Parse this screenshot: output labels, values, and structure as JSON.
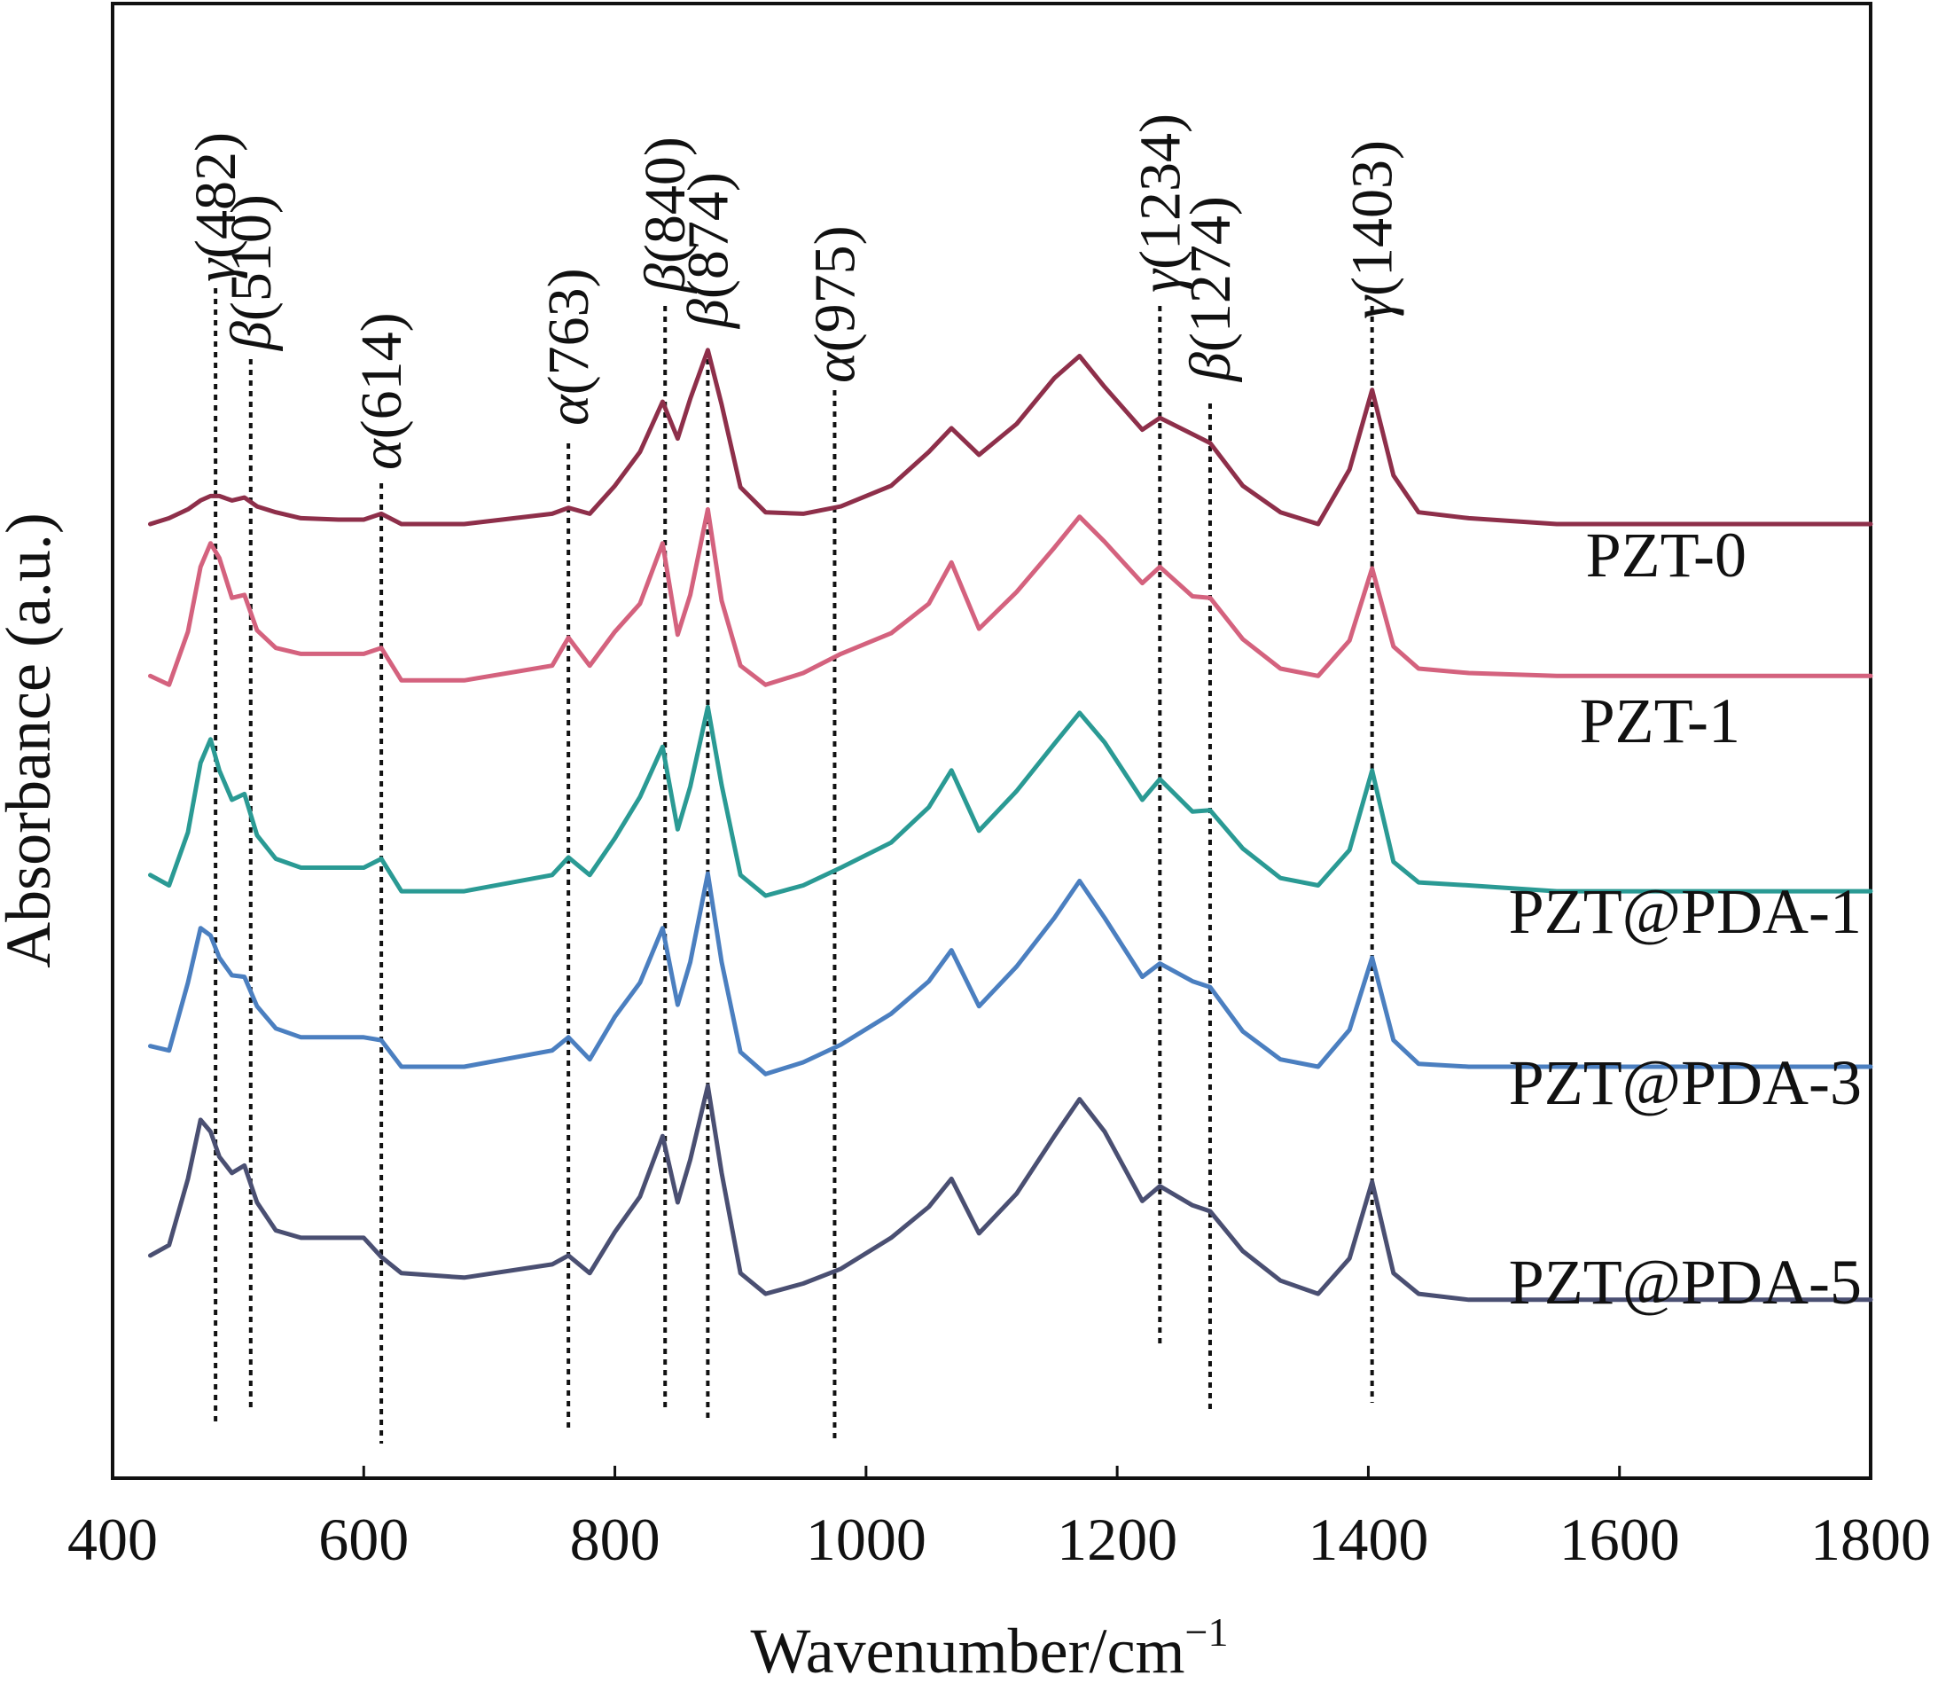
{
  "chart_data": {
    "type": "line",
    "title": "",
    "xlabel": "Wavenumber/cm",
    "xlabel_sup": "−1",
    "ylabel": "Absorbance (a.u.)",
    "xlim": [
      400,
      1800
    ],
    "ylim": [
      0,
      1
    ],
    "x_ticks": [
      400,
      600,
      800,
      1000,
      1200,
      1400,
      1600,
      1800
    ],
    "y_ticks_shown": false,
    "grid": false,
    "peaks": [
      {
        "symbol": "γ",
        "text": "(482)",
        "x": 482
      },
      {
        "symbol": "β",
        "text": "(510)",
        "x": 510
      },
      {
        "symbol": "α",
        "text": "(614)",
        "x": 614
      },
      {
        "symbol": "α",
        "text": "(763)",
        "x": 763
      },
      {
        "symbol": "β",
        "text": "(840)",
        "x": 840
      },
      {
        "symbol": "β",
        "text": "(874)",
        "x": 874
      },
      {
        "symbol": "α",
        "text": "(975)",
        "x": 975
      },
      {
        "symbol": "γ",
        "text": "(1234)",
        "x": 1234
      },
      {
        "symbol": "β",
        "text": "(1274)",
        "x": 1274
      },
      {
        "symbol": "γ",
        "text": "(1403)",
        "x": 1403
      }
    ],
    "x": [
      430,
      445,
      460,
      470,
      478,
      485,
      495,
      505,
      515,
      530,
      550,
      580,
      600,
      614,
      630,
      680,
      750,
      763,
      780,
      800,
      820,
      838,
      850,
      860,
      874,
      885,
      900,
      920,
      950,
      980,
      1020,
      1050,
      1068,
      1090,
      1120,
      1150,
      1170,
      1190,
      1220,
      1234,
      1260,
      1274,
      1300,
      1330,
      1360,
      1385,
      1403,
      1420,
      1440,
      1480,
      1550,
      1650,
      1800
    ],
    "series": [
      {
        "name": "PZT-0",
        "color": "#8e2f4a",
        "values": [
          0.647,
          0.651,
          0.657,
          0.663,
          0.666,
          0.666,
          0.663,
          0.665,
          0.659,
          0.655,
          0.651,
          0.65,
          0.65,
          0.654,
          0.647,
          0.647,
          0.654,
          0.658,
          0.654,
          0.673,
          0.696,
          0.73,
          0.705,
          0.732,
          0.765,
          0.728,
          0.672,
          0.655,
          0.654,
          0.659,
          0.673,
          0.696,
          0.712,
          0.694,
          0.715,
          0.746,
          0.761,
          0.74,
          0.711,
          0.719,
          0.708,
          0.702,
          0.673,
          0.655,
          0.647,
          0.684,
          0.738,
          0.68,
          0.655,
          0.651,
          0.647,
          0.647,
          0.647
        ]
      },
      {
        "name": "PZT-1",
        "color": "#d4627e",
        "values": [
          0.544,
          0.538,
          0.574,
          0.618,
          0.634,
          0.624,
          0.597,
          0.599,
          0.575,
          0.563,
          0.559,
          0.559,
          0.559,
          0.563,
          0.541,
          0.541,
          0.551,
          0.57,
          0.551,
          0.574,
          0.593,
          0.634,
          0.572,
          0.599,
          0.657,
          0.595,
          0.551,
          0.538,
          0.546,
          0.559,
          0.573,
          0.593,
          0.621,
          0.576,
          0.601,
          0.631,
          0.652,
          0.635,
          0.607,
          0.618,
          0.598,
          0.597,
          0.569,
          0.549,
          0.544,
          0.568,
          0.617,
          0.564,
          0.549,
          0.546,
          0.544,
          0.544,
          0.544
        ]
      },
      {
        "name": "PZT@PDA-1",
        "color": "#2a9a94",
        "values": [
          0.409,
          0.402,
          0.438,
          0.485,
          0.501,
          0.48,
          0.46,
          0.464,
          0.436,
          0.42,
          0.414,
          0.414,
          0.414,
          0.42,
          0.398,
          0.398,
          0.409,
          0.421,
          0.409,
          0.434,
          0.462,
          0.496,
          0.44,
          0.469,
          0.523,
          0.47,
          0.409,
          0.395,
          0.402,
          0.414,
          0.431,
          0.455,
          0.48,
          0.439,
          0.466,
          0.498,
          0.519,
          0.499,
          0.46,
          0.474,
          0.452,
          0.453,
          0.427,
          0.407,
          0.402,
          0.426,
          0.48,
          0.418,
          0.404,
          0.402,
          0.398,
          0.398,
          0.398
        ]
      },
      {
        "name": "PZT@PDA-3",
        "color": "#4b7fc0",
        "values": [
          0.293,
          0.29,
          0.336,
          0.373,
          0.368,
          0.353,
          0.341,
          0.34,
          0.32,
          0.305,
          0.299,
          0.299,
          0.299,
          0.297,
          0.279,
          0.279,
          0.29,
          0.299,
          0.284,
          0.313,
          0.336,
          0.373,
          0.321,
          0.35,
          0.41,
          0.35,
          0.289,
          0.274,
          0.282,
          0.294,
          0.315,
          0.337,
          0.358,
          0.32,
          0.347,
          0.38,
          0.405,
          0.38,
          0.34,
          0.349,
          0.337,
          0.333,
          0.303,
          0.284,
          0.279,
          0.304,
          0.353,
          0.297,
          0.281,
          0.279,
          0.279,
          0.279,
          0.279
        ]
      },
      {
        "name": "PZT@PDA-5",
        "color": "#4a4f72",
        "values": [
          0.151,
          0.158,
          0.203,
          0.243,
          0.235,
          0.218,
          0.207,
          0.212,
          0.187,
          0.168,
          0.163,
          0.163,
          0.163,
          0.15,
          0.139,
          0.136,
          0.145,
          0.151,
          0.139,
          0.167,
          0.191,
          0.232,
          0.187,
          0.216,
          0.266,
          0.207,
          0.139,
          0.125,
          0.132,
          0.142,
          0.163,
          0.184,
          0.203,
          0.166,
          0.193,
          0.232,
          0.257,
          0.235,
          0.188,
          0.198,
          0.185,
          0.181,
          0.154,
          0.134,
          0.125,
          0.149,
          0.201,
          0.139,
          0.125,
          0.121,
          0.121,
          0.121,
          0.121
        ]
      }
    ]
  }
}
